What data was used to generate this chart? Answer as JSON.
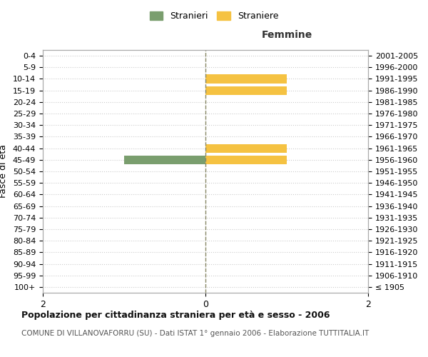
{
  "age_groups": [
    "100+",
    "95-99",
    "90-94",
    "85-89",
    "80-84",
    "75-79",
    "70-74",
    "65-69",
    "60-64",
    "55-59",
    "50-54",
    "45-49",
    "40-44",
    "35-39",
    "30-34",
    "25-29",
    "20-24",
    "15-19",
    "10-14",
    "5-9",
    "0-4"
  ],
  "birth_years": [
    "≤ 1905",
    "1906-1910",
    "1911-1915",
    "1916-1920",
    "1921-1925",
    "1926-1930",
    "1931-1935",
    "1936-1940",
    "1941-1945",
    "1946-1950",
    "1951-1955",
    "1956-1960",
    "1961-1965",
    "1966-1970",
    "1971-1975",
    "1976-1980",
    "1981-1985",
    "1986-1990",
    "1991-1995",
    "1996-2000",
    "2001-2005"
  ],
  "males": [
    0,
    0,
    0,
    0,
    0,
    0,
    0,
    0,
    0,
    0,
    0,
    1,
    0,
    0,
    0,
    0,
    0,
    0,
    0,
    0,
    0
  ],
  "females": [
    0,
    0,
    0,
    0,
    0,
    0,
    0,
    0,
    0,
    0,
    0,
    1,
    1,
    0,
    0,
    0,
    0,
    1,
    1,
    0,
    0
  ],
  "male_color": "#7a9e6e",
  "female_color": "#f5c242",
  "xlim": 2,
  "ylabel_left": "Fasce di età",
  "title_femmine": "Femmine",
  "legend_male": "Stranieri",
  "legend_female": "Straniere",
  "main_title": "Popolazione per cittadinanza straniera per età e sesso - 2006",
  "subtitle": "COMUNE DI VILLANOVAFORRU (SU) - Dati ISTAT 1° gennaio 2006 - Elaborazione TUTTITALIA.IT",
  "bg_color": "#ffffff",
  "grid_color": "#cccccc",
  "bar_height": 0.75
}
